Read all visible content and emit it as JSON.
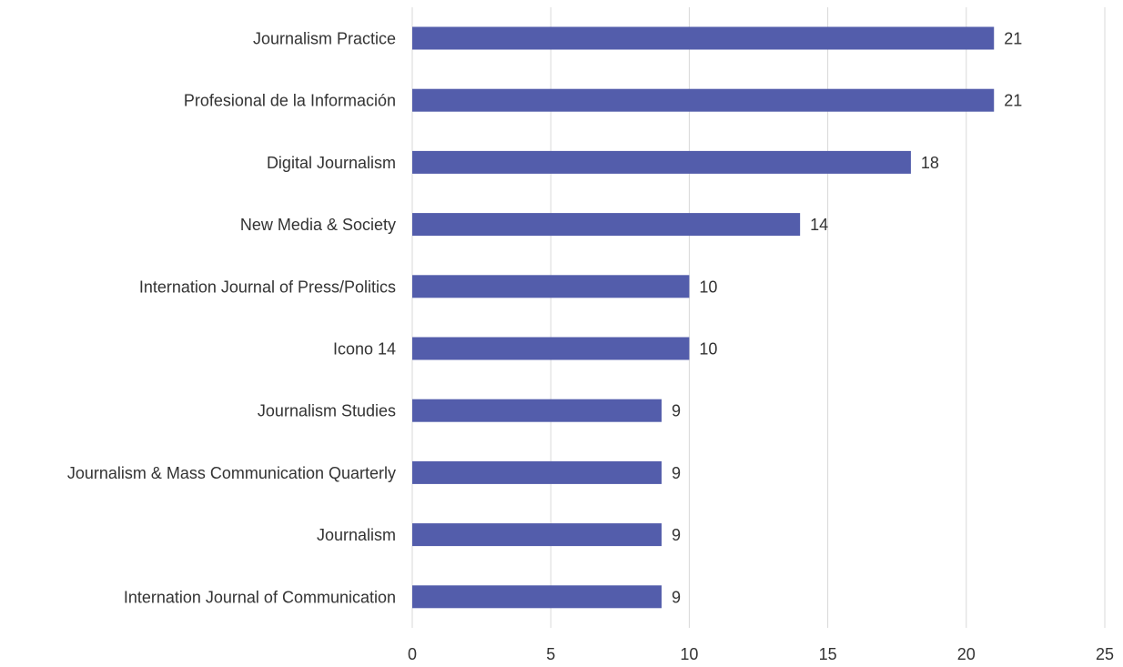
{
  "colors": {
    "bar": "#535dab",
    "text": "#333333",
    "grid": "#d9d9d9",
    "background": "#ffffff"
  },
  "chart_data": {
    "type": "bar",
    "orientation": "horizontal",
    "title": "",
    "xlabel": "",
    "ylabel": "",
    "categories": [
      "Journalism Practice",
      "Profesional de la Información",
      "Digital Journalism",
      "New Media & Society",
      "Internation Journal of Press/Politics",
      "Icono 14",
      "Journalism Studies",
      "Journalism & Mass Communication Quarterly",
      "Journalism",
      "Internation Journal of Communication"
    ],
    "values": [
      21,
      21,
      18,
      14,
      10,
      10,
      9,
      9,
      9,
      9
    ],
    "data_labels": [
      "21",
      "21",
      "18",
      "14",
      "10",
      "10",
      "9",
      "9",
      "9",
      "9"
    ],
    "xlim": [
      0,
      25
    ],
    "x_ticks": [
      0,
      5,
      10,
      15,
      20,
      25
    ],
    "x_tick_labels": [
      "0",
      "5",
      "10",
      "15",
      "20",
      "25"
    ],
    "grid": "vertical",
    "legend": "none"
  }
}
